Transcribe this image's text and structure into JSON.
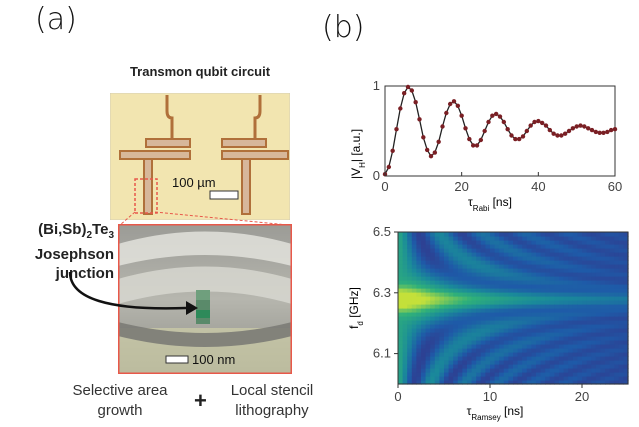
{
  "panel_a": {
    "label": "(a)",
    "title": "Transmon qubit circuit",
    "top_scale_bar": "100 µm",
    "junction_label_line1": "(Bi,Sb)",
    "junction_label_sub1": "2",
    "junction_label_mid": "Te",
    "junction_label_sub2": "3",
    "junction_label_line2": "Josephson",
    "junction_label_line3": "junction",
    "bottom_scale_bar": "100 nm",
    "bottom_left_line1": "Selective area",
    "bottom_left_line2": "growth",
    "plus": "+",
    "bottom_right_line1": "Local stencil",
    "bottom_right_line2": "lithography",
    "colors": {
      "chip": "#f2e5b0",
      "copper": "#b0703a",
      "frame": "#e8584a",
      "sem": "#a7a7a1"
    }
  },
  "panel_b": {
    "label": "(b)"
  },
  "chart_data": [
    {
      "type": "scatter",
      "title": "",
      "xlabel": "τ",
      "xlabel_sub": "Rabi",
      "xlabel_unit": "[ns]",
      "ylabel": "|V",
      "ylabel_sub": "H",
      "ylabel_unit": "| [a.u.]",
      "xlim": [
        0,
        60
      ],
      "ylim": [
        0,
        1
      ],
      "xticks": [
        "0",
        "20",
        "40",
        "60"
      ],
      "yticks": [
        "0",
        "1"
      ],
      "series": [
        {
          "x": [
            0,
            1,
            2,
            3,
            4,
            5,
            6,
            7,
            8,
            9,
            10,
            11,
            12,
            13,
            14,
            15,
            16,
            17,
            18,
            19,
            20,
            21,
            22,
            23,
            24,
            25,
            26,
            27,
            28,
            29,
            30,
            31,
            32,
            33,
            34,
            35,
            36,
            37,
            38,
            39,
            40,
            41,
            42,
            43,
            44,
            45,
            46,
            47,
            48,
            49,
            50,
            51,
            52,
            53,
            54,
            55,
            56,
            57,
            58,
            59,
            60
          ],
          "values": [
            0.02,
            0.1,
            0.28,
            0.52,
            0.75,
            0.92,
            0.99,
            0.95,
            0.82,
            0.63,
            0.43,
            0.29,
            0.22,
            0.26,
            0.38,
            0.55,
            0.7,
            0.8,
            0.83,
            0.78,
            0.67,
            0.53,
            0.41,
            0.34,
            0.34,
            0.4,
            0.5,
            0.6,
            0.67,
            0.69,
            0.66,
            0.6,
            0.52,
            0.45,
            0.41,
            0.41,
            0.44,
            0.5,
            0.56,
            0.6,
            0.61,
            0.59,
            0.56,
            0.51,
            0.47,
            0.45,
            0.45,
            0.47,
            0.5,
            0.53,
            0.55,
            0.56,
            0.55,
            0.53,
            0.51,
            0.49,
            0.48,
            0.48,
            0.49,
            0.51,
            0.52
          ],
          "color": "#7a1f24",
          "fit_color": "#222222"
        }
      ]
    },
    {
      "type": "heatmap",
      "title": "",
      "xlabel": "τ",
      "xlabel_sub": "Ramsey",
      "xlabel_unit": "[ns]",
      "ylabel": "f",
      "ylabel_sub": "d",
      "ylabel_unit": " [GHz]",
      "xlim": [
        0,
        25
      ],
      "ylim": [
        6.0,
        6.5
      ],
      "xticks": [
        "0",
        "10",
        "20"
      ],
      "yticks": [
        "6.1",
        "6.3",
        "6.5"
      ],
      "center_frequency": 6.28,
      "colormap": [
        "#3b2a80",
        "#1e5aa8",
        "#1a8a9a",
        "#2fb07a",
        "#c4e03a"
      ]
    }
  ]
}
